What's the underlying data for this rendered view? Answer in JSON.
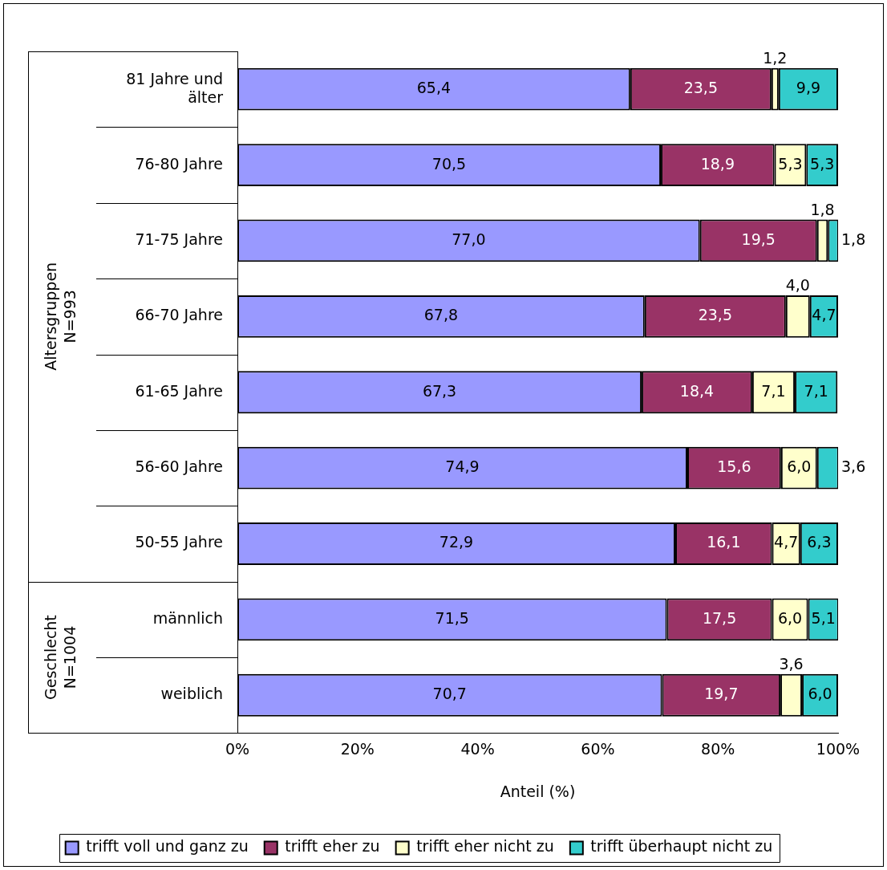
{
  "chart_data": {
    "type": "bar",
    "orientation": "horizontal",
    "stacked": true,
    "categories": [
      "81 Jahre und älter",
      "76-80 Jahre",
      "71-75 Jahre",
      "66-70 Jahre",
      "61-65 Jahre",
      "56-60 Jahre",
      "50-55 Jahre",
      "männlich",
      "weiblich"
    ],
    "series": [
      {
        "name": "trifft voll und ganz zu",
        "color": "#9999ff",
        "values": [
          65.4,
          70.5,
          77.0,
          67.8,
          67.3,
          74.9,
          72.9,
          71.5,
          70.7
        ],
        "value_labels": [
          "65,4",
          "70,5",
          "77,0",
          "67,8",
          "67,3",
          "74,9",
          "72,9",
          "71,5",
          "70,7"
        ]
      },
      {
        "name": "trifft eher zu",
        "color": "#993366",
        "values": [
          23.5,
          18.9,
          19.5,
          23.5,
          18.4,
          15.6,
          16.1,
          17.5,
          19.7
        ],
        "value_labels": [
          "23,5",
          "18,9",
          "19,5",
          "23,5",
          "18,4",
          "15,6",
          "16,1",
          "17,5",
          "19,7"
        ]
      },
      {
        "name": "trifft eher nicht zu",
        "color": "#ffffcc",
        "values": [
          1.2,
          5.3,
          1.8,
          4.0,
          7.1,
          6.0,
          4.7,
          6.0,
          3.6
        ],
        "value_labels": [
          "1,2",
          "5,3",
          "1,8",
          "4,0",
          "7,1",
          "6,0",
          "4,7",
          "6,0",
          "3,6"
        ]
      },
      {
        "name": "trifft überhaupt nicht zu",
        "color": "#33cccc",
        "values": [
          9.9,
          5.3,
          1.8,
          4.7,
          7.1,
          3.6,
          6.3,
          5.1,
          6.0
        ],
        "value_labels": [
          "9,9",
          "5,3",
          "1,8",
          "4,7",
          "7,1",
          "3,6",
          "6,3",
          "5,1",
          "6,0"
        ]
      }
    ],
    "xlim": [
      0,
      100
    ],
    "xticks": [
      {
        "value": 0,
        "label": "0%"
      },
      {
        "value": 20,
        "label": "20%"
      },
      {
        "value": 40,
        "label": "40%"
      },
      {
        "value": 60,
        "label": "60%"
      },
      {
        "value": 80,
        "label": "80%"
      },
      {
        "value": 100,
        "label": "100%"
      }
    ],
    "xlabel": "Anteil (%)",
    "legend": "bottom",
    "grid": false,
    "annotations": [
      "Altersgruppen N=993",
      "Geschlecht N=1004"
    ]
  }
}
